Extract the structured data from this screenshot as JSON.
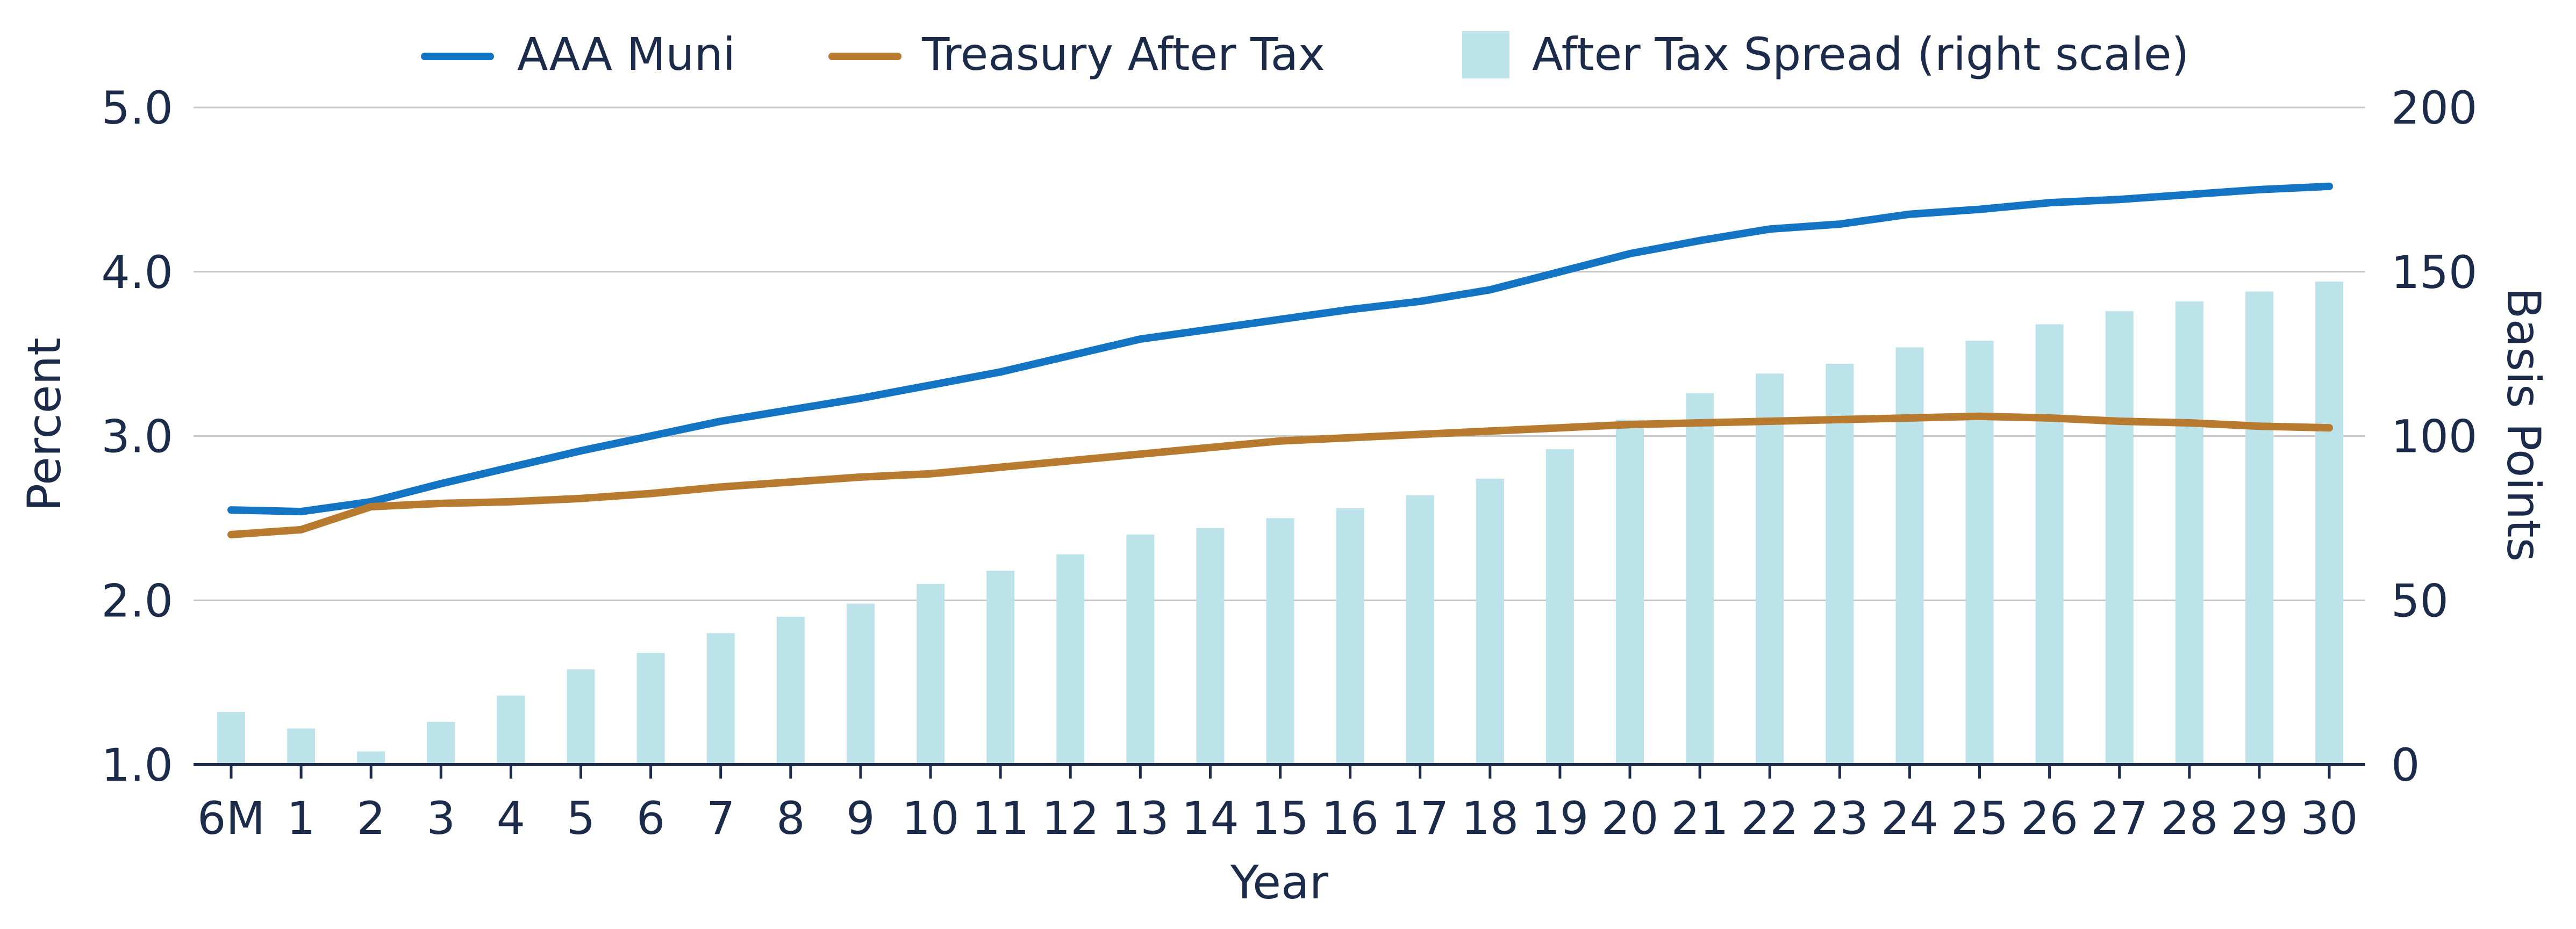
{
  "chart_data": {
    "type": "bar+line",
    "title": "",
    "xlabel": "Year",
    "ylabel_left": "Percent",
    "ylabel_right": "Basis Points",
    "categories": [
      "6M",
      "1",
      "2",
      "3",
      "4",
      "5",
      "6",
      "7",
      "8",
      "9",
      "10",
      "11",
      "12",
      "13",
      "14",
      "15",
      "16",
      "17",
      "18",
      "19",
      "20",
      "21",
      "22",
      "23",
      "24",
      "25",
      "26",
      "27",
      "28",
      "29",
      "30"
    ],
    "y_left": {
      "min": 1.0,
      "max": 5.0,
      "ticks": [
        "1.0",
        "2.0",
        "3.0",
        "4.0",
        "5.0"
      ]
    },
    "y_right": {
      "min": 0,
      "max": 200,
      "ticks": [
        "0",
        "50",
        "100",
        "150",
        "200"
      ]
    },
    "grid": true,
    "legend_position": "top",
    "series": [
      {
        "name": "AAA Muni",
        "kind": "line",
        "axis": "left",
        "color": "#1474c4",
        "values": [
          2.55,
          2.54,
          2.6,
          2.71,
          2.81,
          2.91,
          3.0,
          3.09,
          3.16,
          3.23,
          3.31,
          3.39,
          3.49,
          3.59,
          3.65,
          3.71,
          3.77,
          3.82,
          3.89,
          4.0,
          4.11,
          4.19,
          4.26,
          4.29,
          4.35,
          4.38,
          4.42,
          4.44,
          4.47,
          4.5,
          4.52
        ]
      },
      {
        "name": "Treasury After Tax",
        "kind": "line",
        "axis": "left",
        "color": "#b87a2e",
        "values": [
          2.4,
          2.43,
          2.57,
          2.59,
          2.6,
          2.62,
          2.65,
          2.69,
          2.72,
          2.75,
          2.77,
          2.81,
          2.85,
          2.89,
          2.93,
          2.97,
          2.99,
          3.01,
          3.03,
          3.05,
          3.07,
          3.08,
          3.09,
          3.1,
          3.11,
          3.12,
          3.11,
          3.09,
          3.08,
          3.06,
          3.05
        ]
      },
      {
        "name": "After Tax Spread (right scale)",
        "kind": "bar",
        "axis": "right",
        "color": "#bde3ea",
        "values": [
          16,
          11,
          4,
          13,
          21,
          29,
          34,
          40,
          45,
          49,
          55,
          59,
          64,
          70,
          72,
          75,
          78,
          82,
          87,
          96,
          105,
          113,
          119,
          122,
          127,
          129,
          134,
          138,
          141,
          144,
          147
        ]
      }
    ]
  }
}
